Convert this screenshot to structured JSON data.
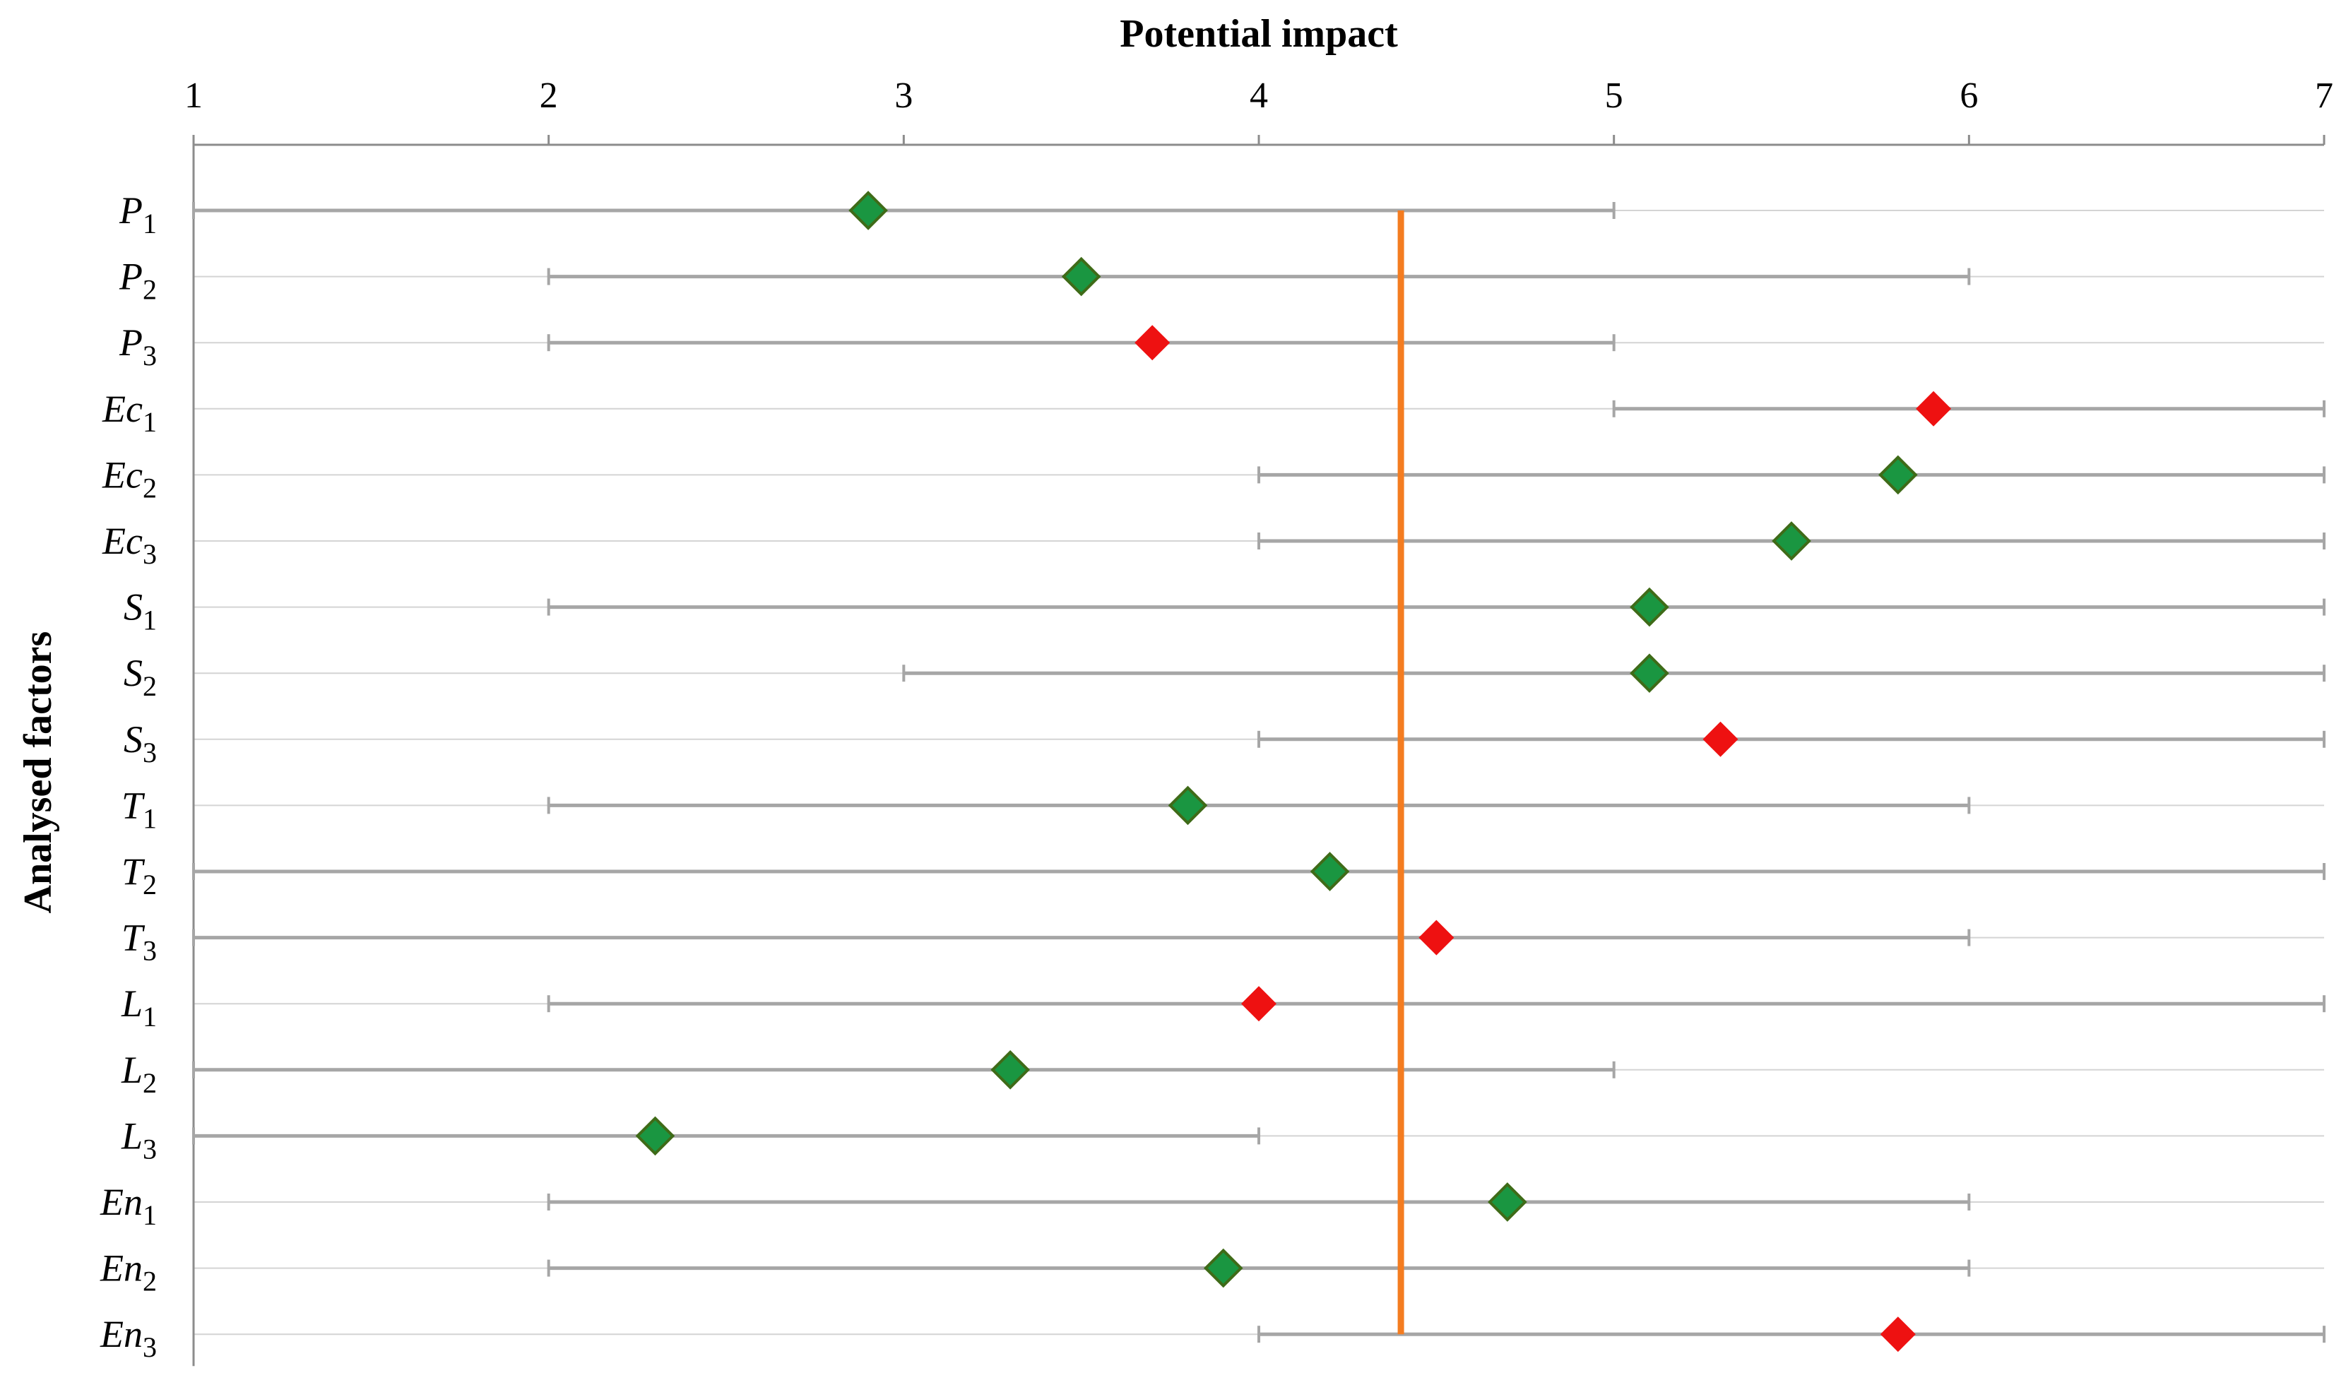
{
  "chart_data": {
    "type": "scatter",
    "title": "",
    "xlabel": "Potential impact",
    "ylabel": "Analysed factors",
    "xlim": [
      1,
      7
    ],
    "x_ticks": [
      "1",
      "2",
      "3",
      "4",
      "5",
      "6",
      "7"
    ],
    "x_axis_position": "top",
    "grid": "horizontal",
    "reference_line": {
      "x": 4.4,
      "color": "#f47c20"
    },
    "marker_colors": {
      "green": "#1a9641",
      "red": "#ee1111"
    },
    "factors": [
      {
        "base": "P",
        "sub": "1",
        "min": 1,
        "max": 5,
        "value": 2.9,
        "color": "green"
      },
      {
        "base": "P",
        "sub": "2",
        "min": 2,
        "max": 6,
        "value": 3.5,
        "color": "green"
      },
      {
        "base": "P",
        "sub": "3",
        "min": 2,
        "max": 5,
        "value": 3.7,
        "color": "red"
      },
      {
        "base": "Ec",
        "sub": "1",
        "min": 5,
        "max": 7,
        "value": 5.9,
        "color": "red"
      },
      {
        "base": "Ec",
        "sub": "2",
        "min": 4,
        "max": 7,
        "value": 5.8,
        "color": "green"
      },
      {
        "base": "Ec",
        "sub": "3",
        "min": 4,
        "max": 7,
        "value": 5.5,
        "color": "green"
      },
      {
        "base": "S",
        "sub": "1",
        "min": 2,
        "max": 7,
        "value": 5.1,
        "color": "green"
      },
      {
        "base": "S",
        "sub": "2",
        "min": 3,
        "max": 7,
        "value": 5.1,
        "color": "green"
      },
      {
        "base": "S",
        "sub": "3",
        "min": 4,
        "max": 7,
        "value": 5.3,
        "color": "red"
      },
      {
        "base": "T",
        "sub": "1",
        "min": 2,
        "max": 6,
        "value": 3.8,
        "color": "green"
      },
      {
        "base": "T",
        "sub": "2",
        "min": 1,
        "max": 7,
        "value": 4.2,
        "color": "green"
      },
      {
        "base": "T",
        "sub": "3",
        "min": 1,
        "max": 6,
        "value": 4.5,
        "color": "red"
      },
      {
        "base": "L",
        "sub": "1",
        "min": 2,
        "max": 7,
        "value": 4.0,
        "color": "red"
      },
      {
        "base": "L",
        "sub": "2",
        "min": 1,
        "max": 5,
        "value": 3.3,
        "color": "green"
      },
      {
        "base": "L",
        "sub": "3",
        "min": 1,
        "max": 4,
        "value": 2.3,
        "color": "green"
      },
      {
        "base": "En",
        "sub": "1",
        "min": 2,
        "max": 6,
        "value": 4.7,
        "color": "green"
      },
      {
        "base": "En",
        "sub": "2",
        "min": 2,
        "max": 6,
        "value": 3.9,
        "color": "green"
      },
      {
        "base": "En",
        "sub": "3",
        "min": 4,
        "max": 7,
        "value": 5.8,
        "color": "red"
      }
    ]
  }
}
